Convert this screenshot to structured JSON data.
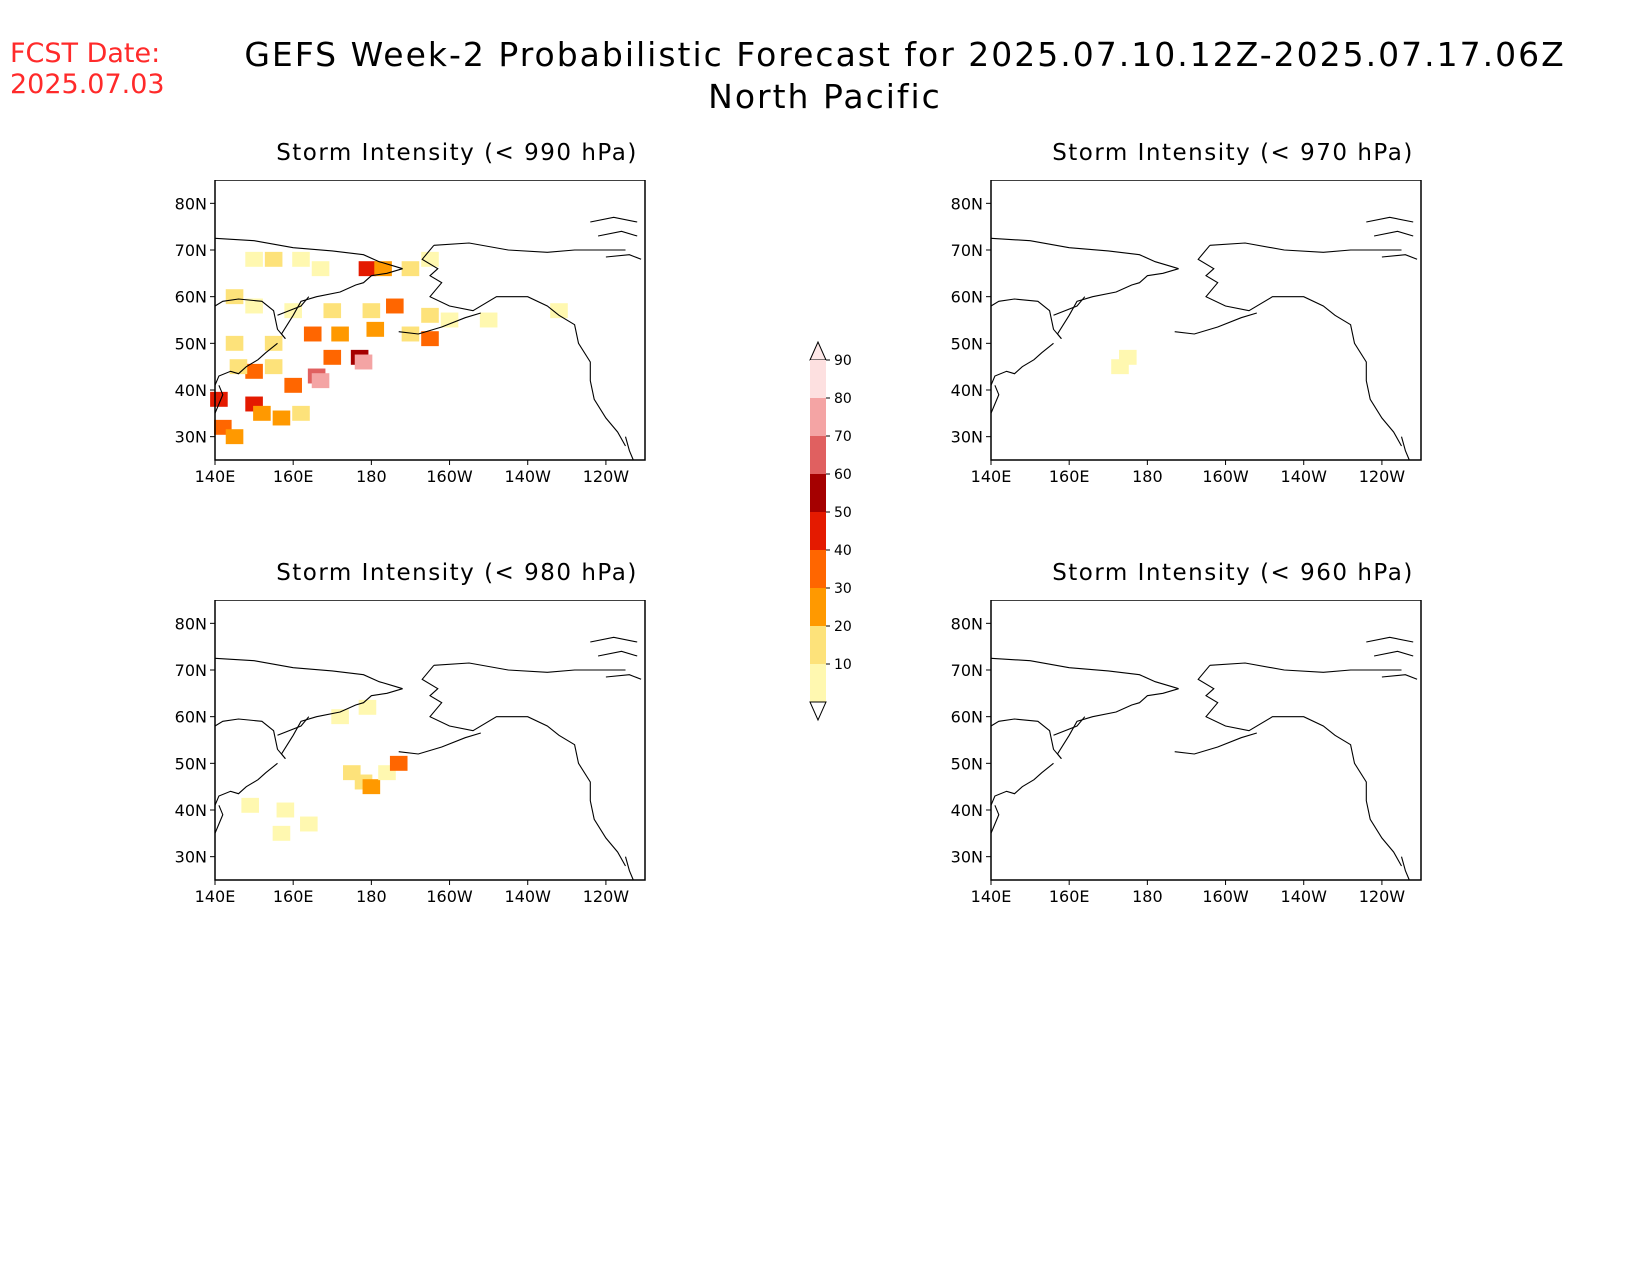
{
  "header": {
    "fcst_label": "FCST Date:",
    "fcst_date": "2025.07.03",
    "title_line1": "GEFS Week-2 Probabilistic Forecast for 2025.07.10.12Z-2025.07.17.06Z",
    "title_line2": "North Pacific"
  },
  "map": {
    "lat_ticks": [
      "80N",
      "70N",
      "60N",
      "50N",
      "40N",
      "30N"
    ],
    "lon_ticks": [
      "140E",
      "160E",
      "180",
      "160W",
      "140W",
      "120W"
    ],
    "lat_values": [
      80,
      70,
      60,
      50,
      40,
      30
    ],
    "lon_values": [
      140,
      160,
      180,
      200,
      220,
      240
    ],
    "lon_range": [
      140,
      250
    ],
    "lat_range": [
      25,
      85
    ]
  },
  "panels": [
    {
      "title": "Storm Intensity (< 990 hPa)"
    },
    {
      "title": "Storm Intensity (< 970 hPa)"
    },
    {
      "title": "Storm Intensity (< 980 hPa)"
    },
    {
      "title": "Storm Intensity (< 960 hPa)"
    }
  ],
  "colorbar": {
    "labels": [
      "90",
      "80",
      "70",
      "60",
      "50",
      "40",
      "30",
      "20",
      "10"
    ],
    "colors": [
      "#fde0e0",
      "#f4a4a4",
      "#e06060",
      "#a50000",
      "#e41a00",
      "#ff6600",
      "#ff9900",
      "#fde27a",
      "#fff8b0"
    ]
  },
  "chart_data": {
    "type": "heatmap",
    "units": "probability (%)",
    "levels": [
      10,
      20,
      30,
      40,
      50,
      60,
      70,
      80,
      90
    ],
    "panels": [
      {
        "threshold_hPa": 990,
        "cells": [
          {
            "lon": 150,
            "lat": 68,
            "value": 15
          },
          {
            "lon": 155,
            "lat": 68,
            "value": 20
          },
          {
            "lon": 162,
            "lat": 68,
            "value": 15
          },
          {
            "lon": 167,
            "lat": 66,
            "value": 10
          },
          {
            "lon": 179,
            "lat": 66,
            "value": 50
          },
          {
            "lon": 183,
            "lat": 66,
            "value": 30
          },
          {
            "lon": 190,
            "lat": 66,
            "value": 20
          },
          {
            "lon": 195,
            "lat": 68,
            "value": 15
          },
          {
            "lon": 145,
            "lat": 60,
            "value": 20
          },
          {
            "lon": 150,
            "lat": 58,
            "value": 15
          },
          {
            "lon": 160,
            "lat": 57,
            "value": 15
          },
          {
            "lon": 170,
            "lat": 57,
            "value": 20
          },
          {
            "lon": 180,
            "lat": 57,
            "value": 25
          },
          {
            "lon": 186,
            "lat": 58,
            "value": 40
          },
          {
            "lon": 195,
            "lat": 56,
            "value": 20
          },
          {
            "lon": 200,
            "lat": 55,
            "value": 15
          },
          {
            "lon": 210,
            "lat": 55,
            "value": 15
          },
          {
            "lon": 228,
            "lat": 57,
            "value": 15
          },
          {
            "lon": 145,
            "lat": 50,
            "value": 20
          },
          {
            "lon": 155,
            "lat": 50,
            "value": 25
          },
          {
            "lon": 165,
            "lat": 52,
            "value": 40
          },
          {
            "lon": 172,
            "lat": 52,
            "value": 30
          },
          {
            "lon": 181,
            "lat": 53,
            "value": 35
          },
          {
            "lon": 190,
            "lat": 52,
            "value": 20
          },
          {
            "lon": 195,
            "lat": 51,
            "value": 45
          },
          {
            "lon": 177,
            "lat": 47,
            "value": 60
          },
          {
            "lon": 178,
            "lat": 46,
            "value": 80
          },
          {
            "lon": 170,
            "lat": 47,
            "value": 40
          },
          {
            "lon": 166,
            "lat": 43,
            "value": 70
          },
          {
            "lon": 167,
            "lat": 42,
            "value": 85
          },
          {
            "lon": 160,
            "lat": 41,
            "value": 45
          },
          {
            "lon": 150,
            "lat": 44,
            "value": 40
          },
          {
            "lon": 146,
            "lat": 45,
            "value": 25
          },
          {
            "lon": 155,
            "lat": 45,
            "value": 20
          },
          {
            "lon": 141,
            "lat": 38,
            "value": 55
          },
          {
            "lon": 142,
            "lat": 32,
            "value": 40
          },
          {
            "lon": 150,
            "lat": 37,
            "value": 55
          },
          {
            "lon": 152,
            "lat": 35,
            "value": 30
          },
          {
            "lon": 157,
            "lat": 34,
            "value": 30
          },
          {
            "lon": 162,
            "lat": 35,
            "value": 20
          },
          {
            "lon": 145,
            "lat": 30,
            "value": 30
          }
        ]
      },
      {
        "threshold_hPa": 970,
        "cells": [
          {
            "lon": 173,
            "lat": 45,
            "value": 15
          },
          {
            "lon": 175,
            "lat": 47,
            "value": 10
          }
        ]
      },
      {
        "threshold_hPa": 980,
        "cells": [
          {
            "lon": 175,
            "lat": 48,
            "value": 20
          },
          {
            "lon": 178,
            "lat": 46,
            "value": 25
          },
          {
            "lon": 180,
            "lat": 45,
            "value": 35
          },
          {
            "lon": 184,
            "lat": 48,
            "value": 15
          },
          {
            "lon": 187,
            "lat": 50,
            "value": 40
          },
          {
            "lon": 179,
            "lat": 62,
            "value": 15
          },
          {
            "lon": 172,
            "lat": 60,
            "value": 10
          },
          {
            "lon": 149,
            "lat": 41,
            "value": 15
          },
          {
            "lon": 158,
            "lat": 40,
            "value": 10
          },
          {
            "lon": 157,
            "lat": 35,
            "value": 15
          },
          {
            "lon": 164,
            "lat": 37,
            "value": 10
          }
        ]
      },
      {
        "threshold_hPa": 960,
        "cells": []
      }
    ]
  }
}
